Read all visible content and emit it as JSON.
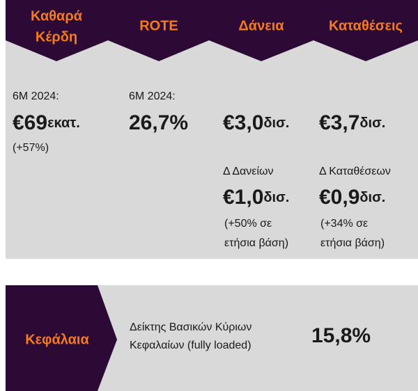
{
  "headers": [
    {
      "lines": [
        "Καθαρά",
        "Κέρδη"
      ]
    },
    {
      "lines": [
        "ROTE"
      ]
    },
    {
      "lines": [
        "Δάνεια"
      ]
    },
    {
      "lines": [
        "Καταθέσεις"
      ]
    }
  ],
  "net_profit": {
    "period": "6M 2024:",
    "amount": "€69",
    "unit": "εκατ.",
    "change": "(+57%)"
  },
  "rote": {
    "period": "6M 2024:",
    "amount": "26,7%"
  },
  "loans": {
    "amount": "€3,0",
    "unit": "δισ.",
    "delta_label": "Δ Δανείων",
    "delta_amount": "€1,0",
    "delta_unit": "δισ.",
    "change_lines": [
      "(+50% σε",
      "ετήσια βάση)"
    ]
  },
  "deposits": {
    "amount": "€3,7",
    "unit": "δισ.",
    "delta_label": "Δ Καταθέσεων",
    "delta_amount": "€0,9",
    "delta_unit": "δισ.",
    "change_lines": [
      "(+34% σε",
      "ετήσια βάση)"
    ]
  },
  "capital": {
    "title": "Κεφάλαια",
    "label_lines": [
      "Δείκτης Βασικών Κύριων",
      "Κεφαλαίων (fully loaded)"
    ],
    "value": "15,8%"
  }
}
